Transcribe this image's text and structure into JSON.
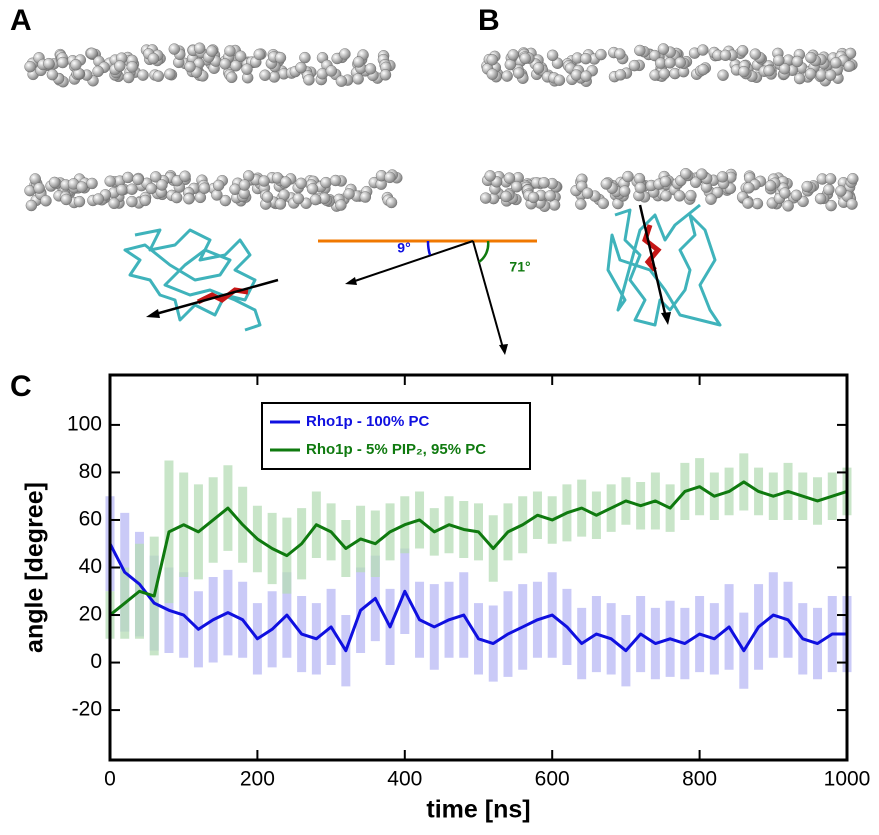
{
  "panel_labels": [
    "A",
    "B",
    "C"
  ],
  "angle_labels": [
    "9°",
    "71°"
  ],
  "chart_data": {
    "type": "line",
    "xlabel": "time [ns]",
    "ylabel": "angle [degree]",
    "xlim": [
      0,
      1000
    ],
    "xticks": [
      0,
      200,
      400,
      600,
      800,
      1000
    ],
    "ylim": [
      -41,
      121
    ],
    "yticks": [
      -20,
      0,
      20,
      40,
      60,
      80,
      100
    ],
    "x": [
      0,
      20,
      40,
      60,
      80,
      100,
      120,
      140,
      160,
      180,
      200,
      220,
      240,
      260,
      280,
      300,
      320,
      340,
      360,
      380,
      400,
      420,
      440,
      460,
      480,
      500,
      520,
      540,
      560,
      580,
      600,
      620,
      640,
      660,
      680,
      700,
      720,
      740,
      760,
      780,
      800,
      820,
      840,
      860,
      880,
      900,
      920,
      940,
      960,
      980,
      1000
    ],
    "series": [
      {
        "name": "Rho1p - 100% PC",
        "color": "#1010e0",
        "error_color": "#b8b8f4",
        "values": [
          50,
          38,
          33,
          25,
          22,
          20,
          14,
          18,
          21,
          18,
          10,
          14,
          20,
          12,
          10,
          15,
          5,
          22,
          27,
          15,
          30,
          18,
          15,
          18,
          20,
          10,
          8,
          12,
          15,
          18,
          20,
          15,
          8,
          12,
          10,
          5,
          12,
          8,
          10,
          8,
          12,
          10,
          15,
          5,
          15,
          20,
          18,
          10,
          8,
          12,
          12
        ],
        "errors": [
          20,
          25,
          22,
          20,
          18,
          18,
          16,
          18,
          18,
          16,
          15,
          16,
          18,
          16,
          15,
          16,
          15,
          18,
          18,
          16,
          18,
          16,
          18,
          16,
          18,
          15,
          16,
          18,
          18,
          16,
          18,
          16,
          15,
          16,
          15,
          15,
          16,
          15,
          16,
          15,
          16,
          15,
          18,
          16,
          18,
          18,
          16,
          15,
          15,
          16,
          16
        ]
      },
      {
        "name": "Rho1p - 5% PIP₂, 95% PC",
        "color": "#0f7a0f",
        "error_color": "#b5dcb5",
        "values": [
          20,
          25,
          30,
          28,
          55,
          58,
          55,
          60,
          65,
          58,
          52,
          48,
          45,
          50,
          58,
          55,
          48,
          52,
          50,
          55,
          58,
          60,
          55,
          58,
          56,
          55,
          48,
          55,
          58,
          62,
          60,
          63,
          65,
          62,
          65,
          68,
          66,
          68,
          65,
          72,
          74,
          70,
          72,
          76,
          72,
          70,
          72,
          70,
          68,
          70,
          72
        ],
        "errors": [
          10,
          15,
          20,
          25,
          30,
          22,
          20,
          18,
          18,
          16,
          14,
          15,
          16,
          15,
          14,
          12,
          12,
          14,
          14,
          12,
          12,
          12,
          10,
          12,
          12,
          12,
          14,
          12,
          12,
          10,
          10,
          12,
          12,
          10,
          10,
          10,
          10,
          12,
          10,
          12,
          12,
          10,
          10,
          12,
          10,
          10,
          12,
          10,
          10,
          10,
          10
        ]
      }
    ]
  }
}
